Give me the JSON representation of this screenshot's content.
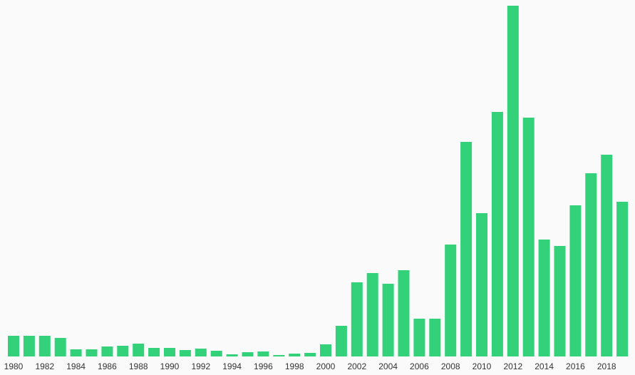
{
  "chart_data": {
    "type": "bar",
    "categories": [
      "1980",
      "1981",
      "1982",
      "1983",
      "1984",
      "1985",
      "1986",
      "1987",
      "1988",
      "1989",
      "1990",
      "1991",
      "1992",
      "1993",
      "1994",
      "1995",
      "1996",
      "1997",
      "1998",
      "1999",
      "2000",
      "2001",
      "2002",
      "2003",
      "2004",
      "2005",
      "2006",
      "2007",
      "2008",
      "2009",
      "2010",
      "2011",
      "2012",
      "2013",
      "2014",
      "2015",
      "2016",
      "2017",
      "2018",
      "2019"
    ],
    "tick_labels": [
      "1980",
      "1982",
      "1984",
      "1986",
      "1988",
      "1990",
      "1992",
      "1994",
      "1996",
      "1998",
      "2000",
      "2002",
      "2004",
      "2006",
      "2008",
      "2010",
      "2012",
      "2014",
      "2016",
      "2018"
    ],
    "values": [
      29,
      29,
      29,
      26,
      10,
      10,
      14,
      15,
      18,
      12,
      12,
      9,
      11,
      8,
      3,
      6,
      7,
      2,
      4,
      5,
      17,
      43,
      104,
      117,
      102,
      121,
      53,
      53,
      157,
      301,
      201,
      343,
      492,
      335,
      164,
      155,
      212,
      257,
      283,
      217
    ],
    "ylim": [
      0,
      492
    ],
    "grid": false,
    "legend": "none",
    "bar_color": "#33d17a",
    "title": "",
    "xlabel": "",
    "ylabel": ""
  }
}
